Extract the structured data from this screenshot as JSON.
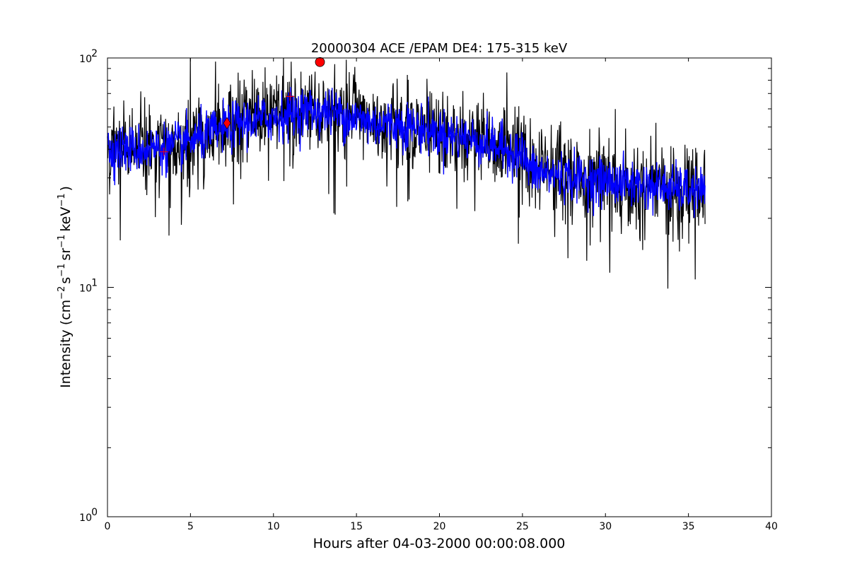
{
  "chart_data": {
    "type": "line",
    "title": "20000304 ACE /EPAM DE4: 175-315 keV",
    "xlabel": "Hours after 04-03-2000 00:00:08.000",
    "ylabel": {
      "prefix": "Intensity (cm",
      "exp1": "−2",
      "mid1": "s",
      "exp2": "−1",
      "mid2": "sr",
      "exp3": "−1",
      "mid3": "keV",
      "exp4": "−1",
      "suffix": ")"
    },
    "xlim": [
      0,
      40
    ],
    "ylim": [
      1,
      100
    ],
    "yscale": "log",
    "grid": false,
    "x_ticks": [
      "0",
      "5",
      "10",
      "15",
      "20",
      "25",
      "30",
      "35",
      "40"
    ],
    "y_ticks": [
      {
        "value": 1,
        "base": "10",
        "exp": "0"
      },
      {
        "value": 10,
        "base": "10",
        "exp": "1"
      },
      {
        "value": 100,
        "base": "10",
        "exp": "2"
      }
    ],
    "trend_knots": [
      [
        0.0,
        40
      ],
      [
        2.0,
        40
      ],
      [
        4.0,
        41
      ],
      [
        6.0,
        46
      ],
      [
        8.0,
        52
      ],
      [
        10.0,
        55
      ],
      [
        12.0,
        59
      ],
      [
        14.0,
        57
      ],
      [
        16.0,
        52
      ],
      [
        18.0,
        51
      ],
      [
        20.0,
        47
      ],
      [
        22.0,
        44
      ],
      [
        24.0,
        40
      ],
      [
        25.0,
        38
      ],
      [
        25.5,
        32
      ],
      [
        28.0,
        30
      ],
      [
        30.0,
        29
      ],
      [
        32.0,
        28
      ],
      [
        34.0,
        27
      ],
      [
        36.0,
        26
      ]
    ],
    "series": [
      {
        "color": "#000000",
        "x_end": 36.0,
        "n_points": 1400
      },
      {
        "color": "#0000ff",
        "x_end": 36.0,
        "n_points": 1400
      }
    ],
    "markers": [
      {
        "shape": "circle",
        "x": 12.8,
        "y": 96,
        "color": "#ff0000"
      },
      {
        "shape": "diamond",
        "x": 7.2,
        "y": 52,
        "color": "#ff0000"
      },
      {
        "shape": "plus",
        "x": 3.4,
        "y": 39,
        "color": "#ff0000"
      },
      {
        "shape": "plus",
        "x": 11.0,
        "y": 68,
        "color": "#ff0000"
      }
    ]
  }
}
